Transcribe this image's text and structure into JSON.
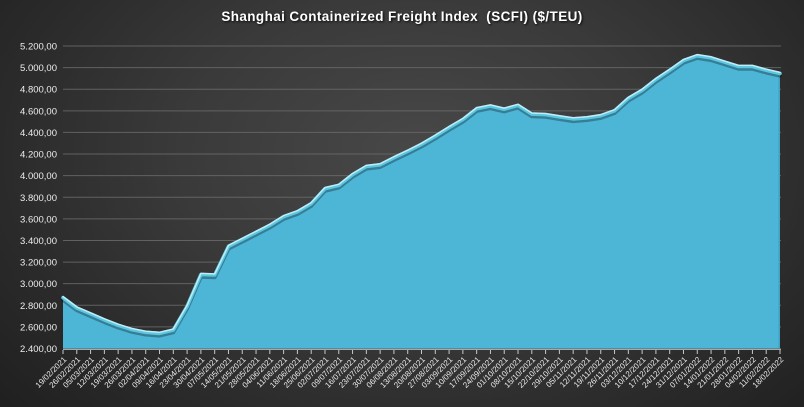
{
  "chart_data": {
    "type": "area",
    "title": "Shanghai Containerized Freight Index  (SCFI) ($/TEU)",
    "xlabel": "",
    "ylabel": "",
    "ylim": [
      2400,
      5200
    ],
    "ytick_step": 200,
    "ytick_labels": [
      "2.400,00",
      "2.600,00",
      "2.800,00",
      "3.000,00",
      "3.200,00",
      "3.400,00",
      "3.600,00",
      "3.800,00",
      "4.000,00",
      "4.200,00",
      "4.400,00",
      "4.600,00",
      "4.800,00",
      "5.000,00",
      "5.200,00"
    ],
    "grid": true,
    "legend_position": "none",
    "categories": [
      "19/02/2021",
      "26/02/2021",
      "05/03/2021",
      "12/03/2021",
      "19/03/2021",
      "26/03/2021",
      "02/04/2021",
      "09/04/2021",
      "16/04/2021",
      "23/04/2021",
      "30/04/2021",
      "07/05/2021",
      "14/05/2021",
      "21/05/2021",
      "28/05/2021",
      "04/06/2021",
      "11/06/2021",
      "18/06/2021",
      "25/06/2021",
      "02/07/2021",
      "09/07/2021",
      "16/07/2021",
      "23/07/2021",
      "30/07/2021",
      "06/08/2021",
      "13/08/2021",
      "20/08/2021",
      "27/08/2021",
      "03/09/2021",
      "10/09/2021",
      "17/09/2021",
      "24/09/2021",
      "01/10/2021",
      "08/10/2021",
      "15/10/2021",
      "22/10/2021",
      "29/10/2021",
      "05/11/2021",
      "12/11/2021",
      "19/11/2021",
      "26/11/2021",
      "03/12/2021",
      "10/12/2021",
      "17/12/2021",
      "24/12/2021",
      "31/12/2021",
      "07/01/2022",
      "14/01/2022",
      "21/01/2022",
      "28/01/2022",
      "04/02/2022",
      "11/02/2022",
      "18/02/2022"
    ],
    "values": [
      2870,
      2775,
      2720,
      2665,
      2615,
      2575,
      2550,
      2540,
      2570,
      2790,
      3085,
      3080,
      3345,
      3410,
      3475,
      3540,
      3620,
      3665,
      3740,
      3880,
      3910,
      4010,
      4085,
      4100,
      4165,
      4225,
      4290,
      4365,
      4445,
      4520,
      4620,
      4645,
      4615,
      4650,
      4570,
      4565,
      4545,
      4525,
      4535,
      4555,
      4600,
      4715,
      4790,
      4890,
      4975,
      5065,
      5110,
      5090,
      5050,
      5010,
      5010,
      4975,
      4945
    ],
    "colors": {
      "area_fill": "#4DB5D6",
      "area_fill_edge": "#3FA3C4",
      "line": "#5BC6E0",
      "line_highlight": "#C6EEF8",
      "line_shadow": "rgba(0,0,0,0.30)",
      "grid": "#6A6A6A",
      "axis": "#A8A8A8",
      "tick": "#C8C8C8",
      "label": "#EDEDED",
      "title": "#FFFFFF"
    }
  }
}
